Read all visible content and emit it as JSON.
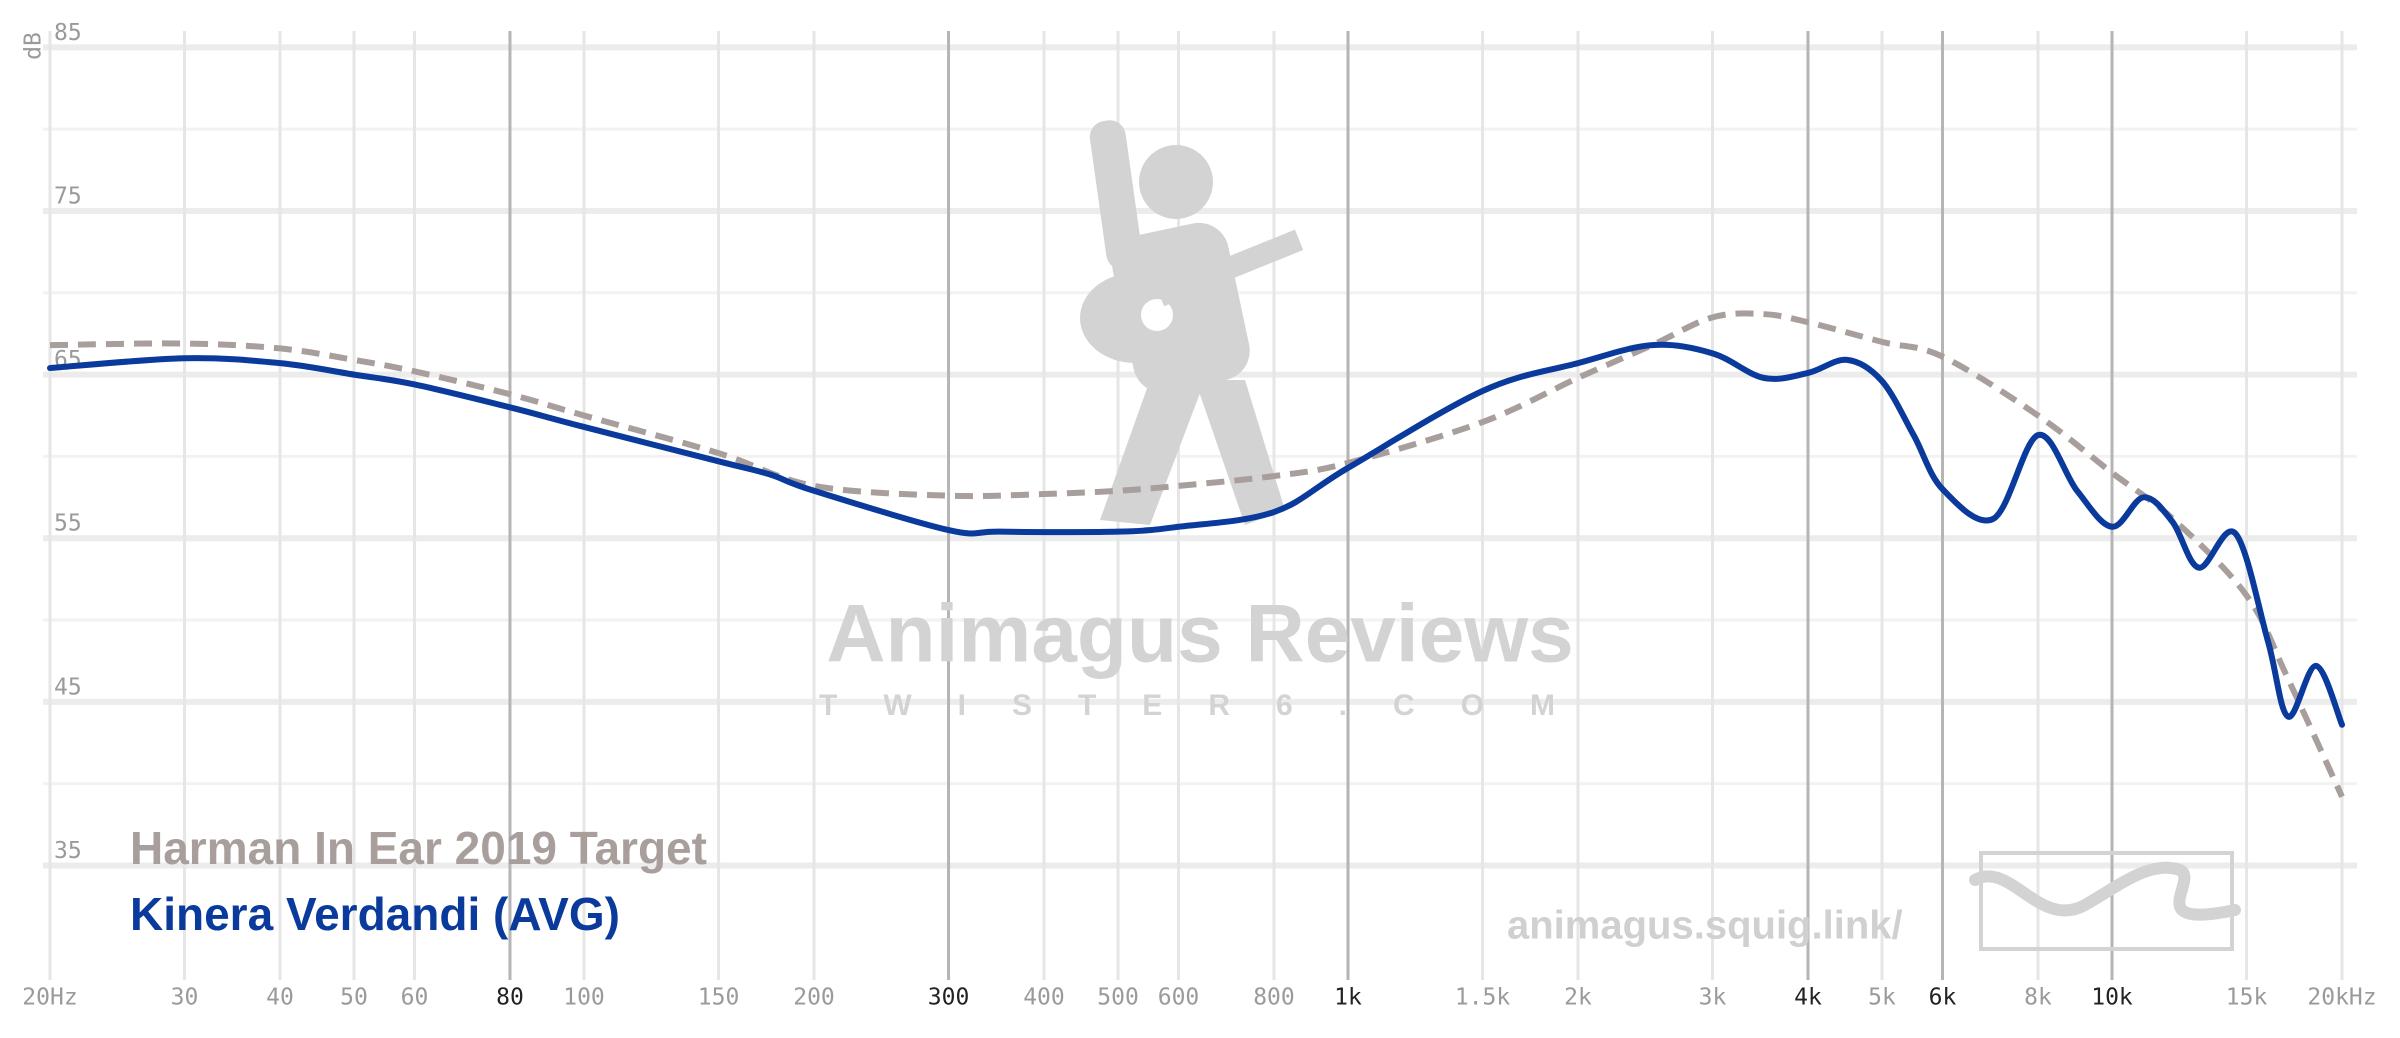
{
  "chart_data": {
    "type": "line",
    "y_label": "dB",
    "log_x": true,
    "grid": true,
    "xlim": [
      20,
      20000
    ],
    "ylim": [
      28,
      86
    ],
    "yticks": [
      35,
      45,
      55,
      65,
      75,
      85
    ],
    "ygrid_minor": [
      40,
      50,
      60,
      70,
      80
    ],
    "xticks": [
      {
        "value": 20,
        "label": "20Hz"
      },
      30,
      40,
      50,
      60,
      80,
      100,
      150,
      200,
      300,
      400,
      500,
      600,
      800,
      {
        "value": 1000,
        "label": "1k"
      },
      {
        "value": 1500,
        "label": "1.5k"
      },
      {
        "value": 2000,
        "label": "2k"
      },
      {
        "value": 3000,
        "label": "3k"
      },
      {
        "value": 4000,
        "label": "4k"
      },
      {
        "value": 5000,
        "label": "5k"
      },
      {
        "value": 6000,
        "label": "6k"
      },
      {
        "value": 8000,
        "label": "8k"
      },
      {
        "value": 10000,
        "label": "10k"
      },
      {
        "value": 15000,
        "label": "15k"
      },
      {
        "value": 20000,
        "label": "20kHz"
      }
    ],
    "xticks_major": [
      80,
      300,
      1000,
      4000,
      6000,
      10000
    ],
    "series": [
      {
        "name": "Harman In Ear 2019 Target",
        "color": "#a89f9c",
        "style": "dashed",
        "x": [
          20,
          30,
          40,
          50,
          60,
          80,
          100,
          150,
          200,
          300,
          400,
          500,
          600,
          800,
          1000,
          1500,
          2000,
          2500,
          3000,
          3500,
          4000,
          5000,
          6000,
          8000,
          10000,
          12000,
          15000,
          17000,
          20000
        ],
        "values": [
          66.8,
          66.9,
          66.6,
          65.9,
          65.2,
          63.8,
          62.5,
          60.2,
          58.2,
          57.6,
          57.7,
          57.9,
          58.2,
          58.8,
          59.6,
          62.1,
          64.8,
          66.8,
          68.5,
          68.7,
          68.2,
          67.0,
          66.1,
          62.5,
          59.0,
          56.2,
          51.5,
          46.4,
          39.2
        ]
      },
      {
        "name": "Kinera Verdandi (AVG)",
        "color": "#0a3a9c",
        "style": "solid",
        "x": [
          20,
          30,
          40,
          50,
          60,
          80,
          100,
          150,
          175,
          200,
          300,
          350,
          500,
          600,
          800,
          1000,
          1500,
          2000,
          2500,
          3000,
          3500,
          4000,
          4500,
          5000,
          5500,
          6000,
          7000,
          8000,
          9000,
          10000,
          11000,
          12000,
          13000,
          14500,
          16000,
          17000,
          18500,
          20000
        ],
        "values": [
          65.4,
          66.0,
          65.7,
          65.0,
          64.4,
          63.0,
          61.8,
          59.7,
          58.9,
          57.9,
          55.5,
          55.4,
          55.4,
          55.7,
          56.6,
          59.3,
          64.0,
          65.7,
          66.8,
          66.3,
          64.8,
          65.1,
          65.9,
          64.6,
          61.3,
          58.0,
          56.2,
          61.3,
          57.9,
          55.7,
          57.5,
          56.0,
          53.2,
          55.3,
          48.7,
          44.1,
          47.2,
          43.6
        ]
      }
    ],
    "watermark_title": "Animagus Reviews",
    "watermark_subtitle": "TWISTER6.COM",
    "site_link": "animagus.squig.link/"
  }
}
